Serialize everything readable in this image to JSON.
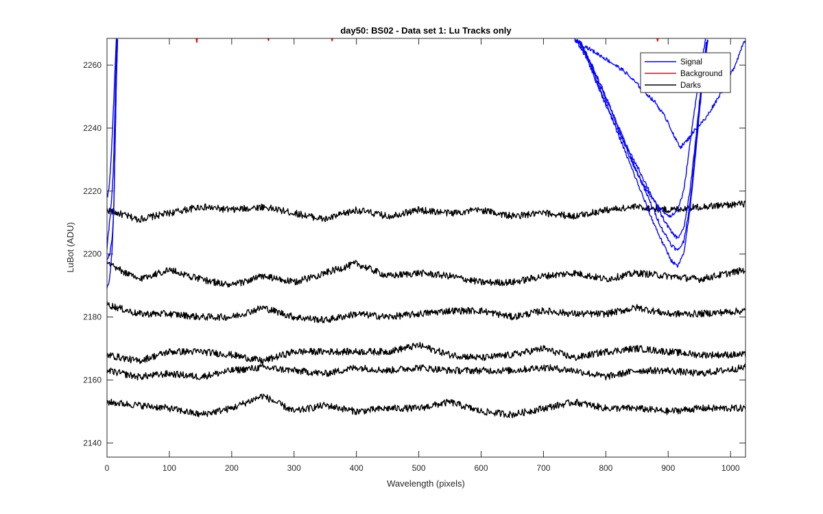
{
  "chart_data": {
    "type": "line",
    "title": "day50: BS02 - Data set 1: Lu Tracks only",
    "xlabel": "Wavelength (pixels)",
    "ylabel": "LuBot (ADU)",
    "xlim": [
      0,
      1024
    ],
    "ylim": [
      2135.5,
      2268.5
    ],
    "xticks": [
      0,
      100,
      200,
      300,
      400,
      500,
      600,
      700,
      800,
      900,
      1000
    ],
    "yticks": [
      2140,
      2160,
      2180,
      2200,
      2220,
      2240,
      2260
    ],
    "grid": false,
    "legend_position": "top-right",
    "legend": [
      {
        "label": "Signal",
        "color": "#0000ff"
      },
      {
        "label": "Background",
        "color": "#ff0000"
      },
      {
        "label": "Darks",
        "color": "#000000"
      }
    ],
    "series": [
      {
        "group": "Darks",
        "color": "#000000",
        "x": [
          0,
          50,
          100,
          150,
          200,
          250,
          300,
          350,
          400,
          450,
          500,
          550,
          600,
          650,
          700,
          750,
          800,
          850,
          900,
          950,
          1024
        ],
        "y": [
          2214,
          2211,
          2213,
          2215,
          2214,
          2215,
          2213,
          2211,
          2214,
          2212,
          2214,
          2213,
          2214,
          2212,
          2213,
          2212,
          2214,
          2215,
          2214,
          2215,
          2216
        ]
      },
      {
        "group": "Darks",
        "color": "#000000",
        "x": [
          0,
          50,
          100,
          150,
          200,
          250,
          300,
          350,
          400,
          450,
          500,
          550,
          600,
          650,
          700,
          750,
          800,
          850,
          900,
          950,
          1024
        ],
        "y": [
          2197,
          2192,
          2195,
          2192,
          2190,
          2193,
          2191,
          2194,
          2197,
          2193,
          2194,
          2193,
          2191,
          2191,
          2193,
          2194,
          2192,
          2194,
          2193,
          2192,
          2195
        ]
      },
      {
        "group": "Darks",
        "color": "#000000",
        "x": [
          0,
          50,
          100,
          150,
          200,
          250,
          300,
          350,
          400,
          450,
          500,
          550,
          600,
          650,
          700,
          750,
          800,
          850,
          900,
          950,
          1024
        ],
        "y": [
          2184,
          2181,
          2181,
          2180,
          2180,
          2183,
          2180,
          2179,
          2181,
          2180,
          2181,
          2182,
          2182,
          2180,
          2182,
          2181,
          2181,
          2183,
          2181,
          2181,
          2182
        ]
      },
      {
        "group": "Darks",
        "color": "#000000",
        "x": [
          0,
          50,
          100,
          150,
          200,
          250,
          300,
          350,
          400,
          450,
          500,
          550,
          600,
          650,
          700,
          750,
          800,
          850,
          900,
          950,
          1024
        ],
        "y": [
          2168,
          2166,
          2169,
          2169,
          2168,
          2166,
          2169,
          2169,
          2169,
          2169,
          2171,
          2168,
          2167,
          2168,
          2170,
          2167,
          2169,
          2170,
          2169,
          2168,
          2168
        ]
      },
      {
        "group": "Darks",
        "color": "#000000",
        "x": [
          0,
          50,
          100,
          150,
          200,
          250,
          300,
          350,
          400,
          450,
          500,
          550,
          600,
          650,
          700,
          750,
          800,
          850,
          900,
          950,
          1024
        ],
        "y": [
          2163,
          2161,
          2162,
          2161,
          2163,
          2164,
          2163,
          2162,
          2164,
          2163,
          2164,
          2163,
          2163,
          2163,
          2164,
          2163,
          2161,
          2163,
          2163,
          2162,
          2164
        ]
      },
      {
        "group": "Darks",
        "color": "#000000",
        "x": [
          0,
          50,
          100,
          150,
          200,
          250,
          300,
          350,
          400,
          450,
          500,
          550,
          600,
          650,
          700,
          750,
          800,
          850,
          900,
          950,
          1024
        ],
        "y": [
          2153,
          2152,
          2151,
          2149,
          2151,
          2155,
          2150,
          2152,
          2150,
          2151,
          2151,
          2153,
          2150,
          2149,
          2151,
          2153,
          2151,
          2151,
          2150,
          2151,
          2151
        ]
      },
      {
        "group": "Signal",
        "color": "#0000ff",
        "x": [
          0,
          4,
          8,
          11,
          13,
          15,
          17
        ],
        "y": [
          2198,
          2200,
          2204,
          2215,
          2235,
          2255,
          2268
        ]
      },
      {
        "group": "Signal",
        "color": "#0000ff",
        "x": [
          0,
          3,
          7,
          10,
          12,
          14,
          16
        ],
        "y": [
          2202,
          2208,
          2216,
          2226,
          2240,
          2256,
          2268
        ]
      },
      {
        "group": "Signal",
        "color": "#0000ff",
        "x": [
          0,
          4,
          8,
          11,
          13,
          15,
          17
        ],
        "y": [
          2189,
          2192,
          2200,
          2215,
          2235,
          2255,
          2268
        ]
      },
      {
        "group": "Signal",
        "color": "#0000ff",
        "x": [
          0,
          3,
          6,
          9,
          12,
          15
        ],
        "y": [
          2218,
          2220,
          2228,
          2240,
          2255,
          2268
        ]
      },
      {
        "group": "Signal",
        "color": "#0000ff",
        "x": [
          750,
          800,
          830,
          860,
          880,
          900,
          910,
          920,
          930,
          945,
          960,
          975,
          990,
          1005,
          1015,
          1020,
          1024
        ],
        "y": [
          2268,
          2262,
          2258,
          2252,
          2248,
          2242,
          2237,
          2234,
          2236,
          2240,
          2243,
          2248,
          2253,
          2259,
          2264,
          2267,
          2268
        ]
      },
      {
        "group": "Signal",
        "color": "#0000ff",
        "x": [
          750,
          760,
          780,
          800,
          820,
          840,
          860,
          880,
          895,
          905,
          915,
          925,
          935,
          945,
          955,
          960
        ],
        "y": [
          2268,
          2267,
          2259,
          2250,
          2240,
          2230,
          2222,
          2216,
          2213,
          2212,
          2214,
          2220,
          2235,
          2250,
          2263,
          2268
        ]
      },
      {
        "group": "Signal",
        "color": "#0000ff",
        "x": [
          752,
          770,
          790,
          810,
          830,
          850,
          870,
          890,
          905,
          915,
          925,
          935,
          945,
          955,
          962
        ],
        "y": [
          2268,
          2262,
          2252,
          2243,
          2235,
          2228,
          2220,
          2212,
          2207,
          2205,
          2208,
          2220,
          2238,
          2258,
          2268
        ]
      },
      {
        "group": "Signal",
        "color": "#0000ff",
        "x": [
          754,
          770,
          790,
          810,
          830,
          850,
          870,
          890,
          905,
          915,
          925,
          935,
          945,
          955,
          963
        ],
        "y": [
          2268,
          2263,
          2254,
          2245,
          2236,
          2226,
          2217,
          2208,
          2203,
          2201,
          2204,
          2216,
          2236,
          2256,
          2268
        ]
      },
      {
        "group": "Signal",
        "color": "#0000ff",
        "x": [
          756,
          772,
          792,
          812,
          832,
          852,
          872,
          890,
          905,
          915,
          925,
          935,
          945,
          955,
          964
        ],
        "y": [
          2268,
          2262,
          2252,
          2242,
          2232,
          2222,
          2212,
          2204,
          2198,
          2196,
          2200,
          2214,
          2234,
          2255,
          2268
        ]
      },
      {
        "group": "Background",
        "color": "#ff0000",
        "x": [
          143,
          144,
          145
        ],
        "y": [
          2268.5,
          2267.2,
          2268.5
        ]
      },
      {
        "group": "Background",
        "color": "#ff0000",
        "x": [
          258,
          259,
          260
        ],
        "y": [
          2268.5,
          2267.8,
          2268.5
        ]
      },
      {
        "group": "Background",
        "color": "#ff0000",
        "x": [
          360,
          361,
          362
        ],
        "y": [
          2268.5,
          2267.7,
          2268.5
        ]
      },
      {
        "group": "Background",
        "color": "#ff0000",
        "x": [
          882,
          883,
          884
        ],
        "y": [
          2268.5,
          2267.6,
          2268.5
        ]
      }
    ]
  }
}
